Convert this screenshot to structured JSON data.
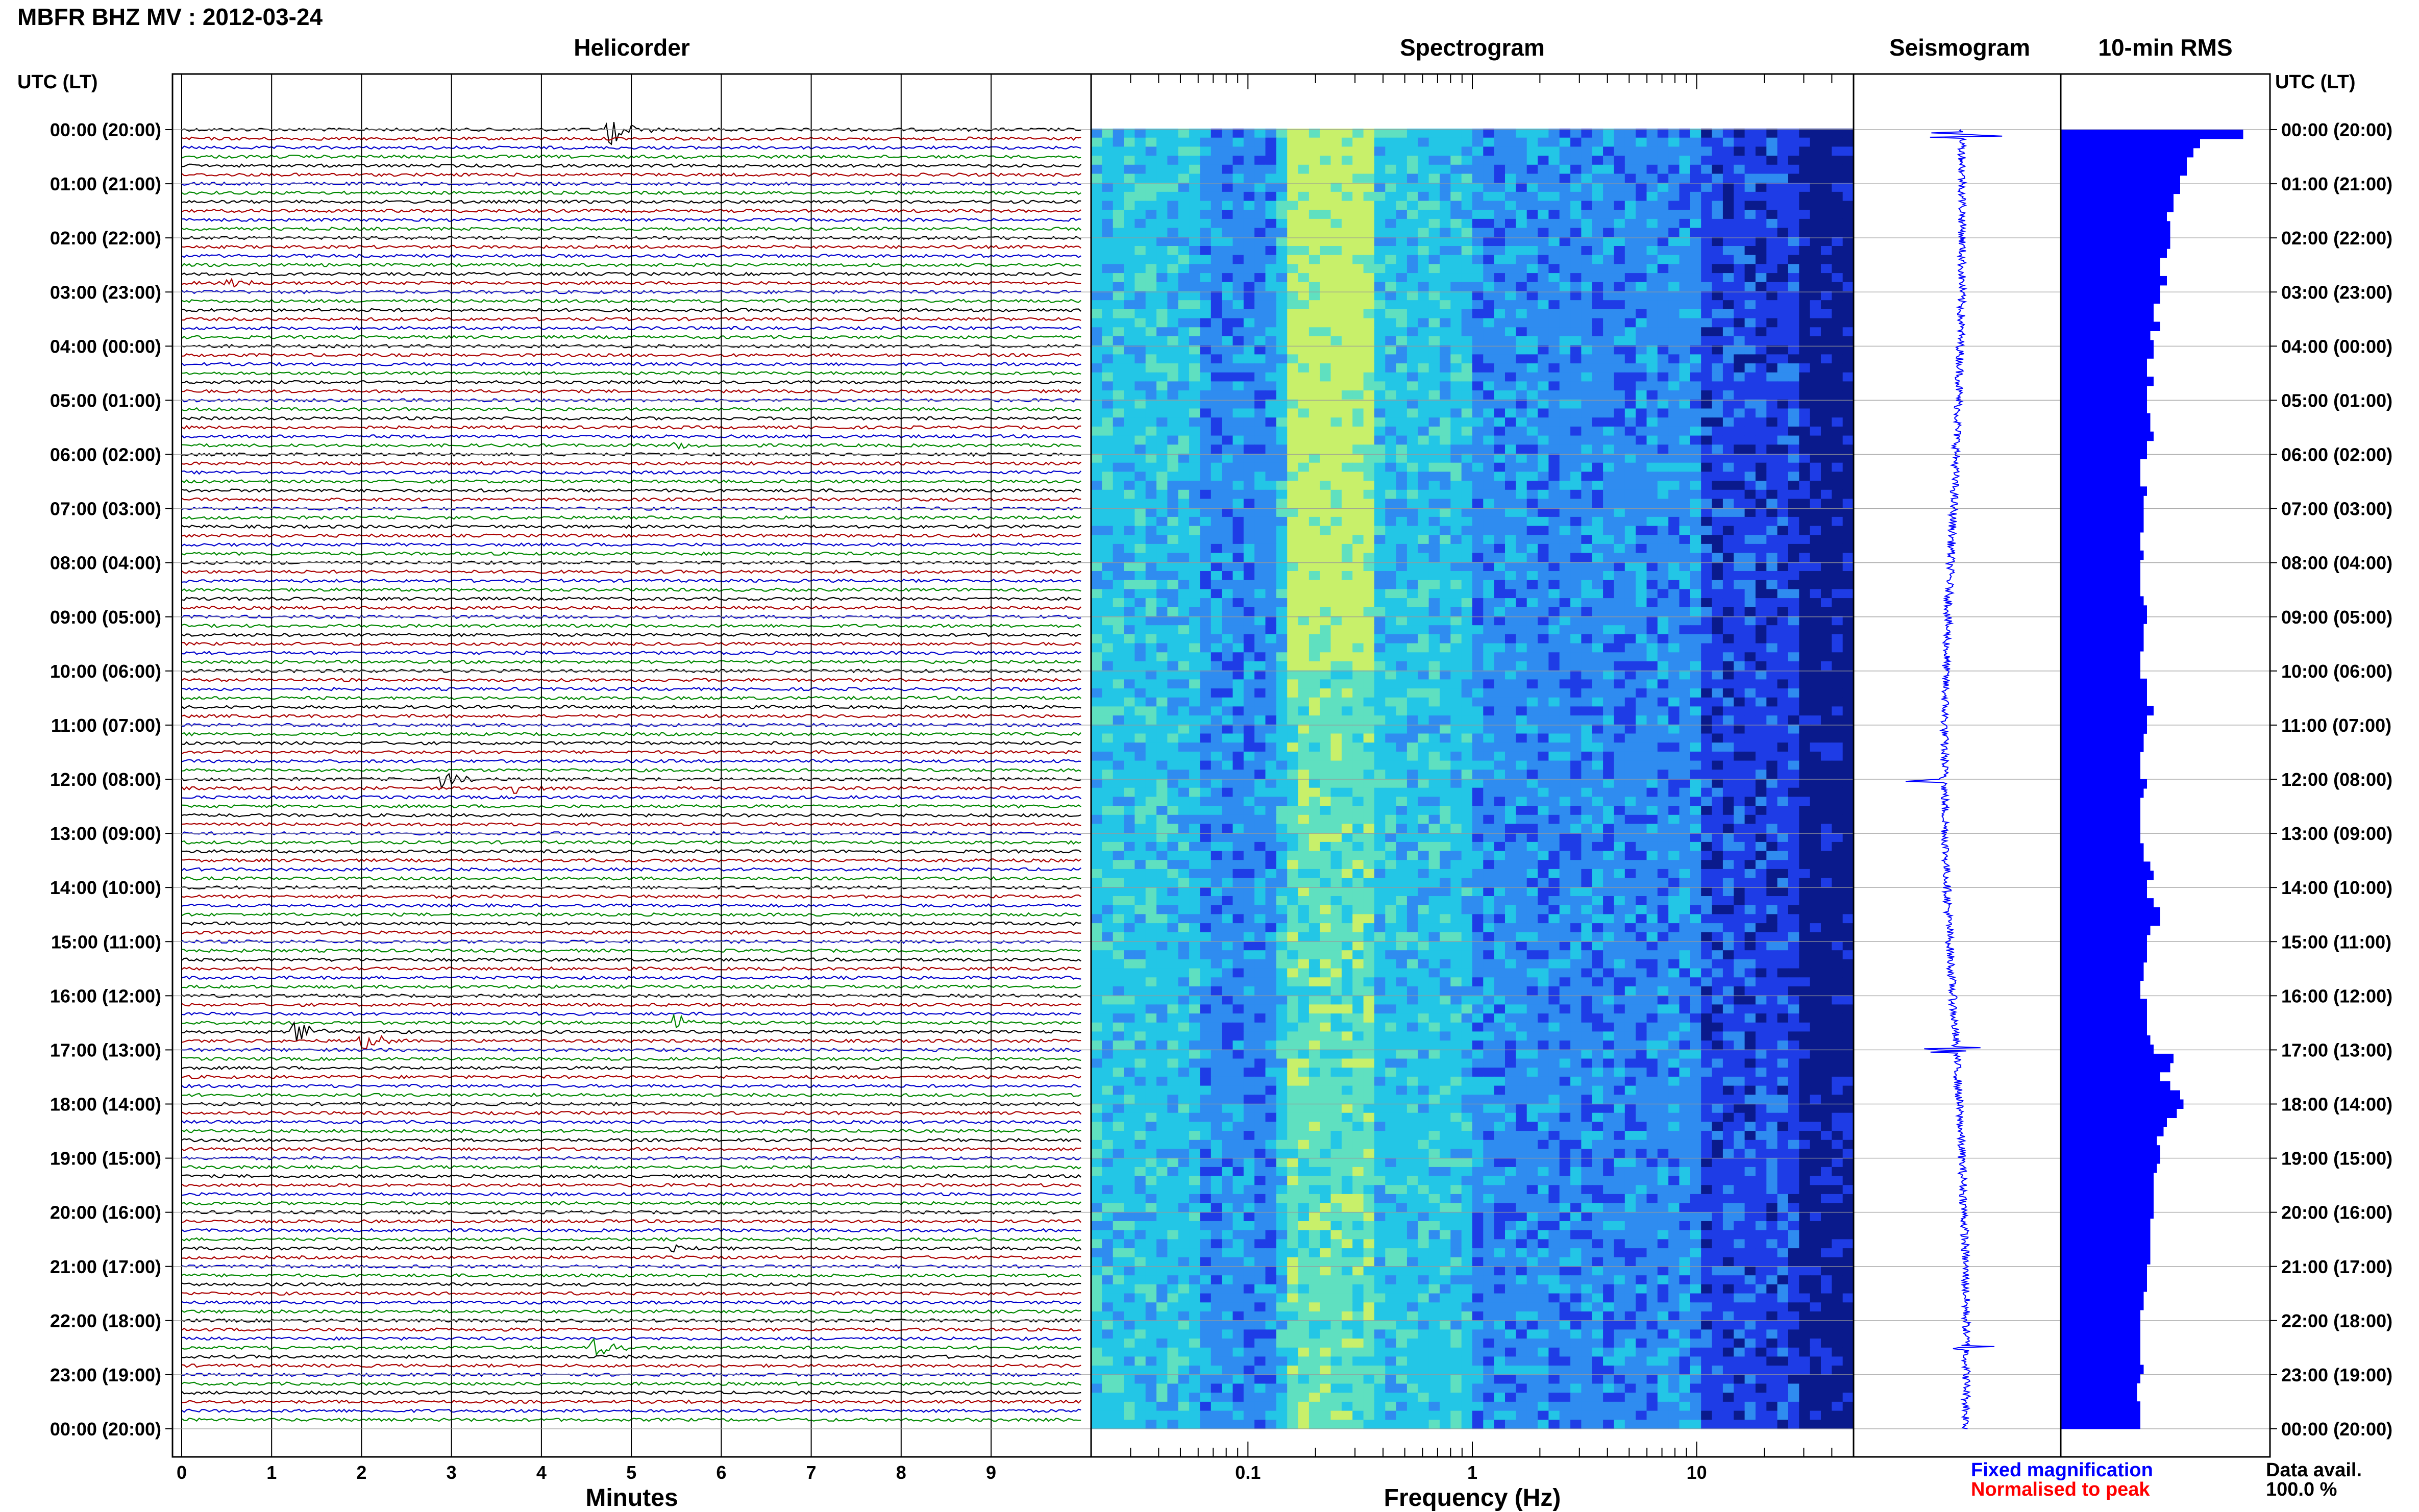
{
  "header": {
    "title": "MBFR BHZ MV : 2012-03-24"
  },
  "panels": {
    "helicorder": "Helicorder",
    "spectrogram": "Spectrogram",
    "seismogram": "Seismogram",
    "rms": "10-min RMS"
  },
  "axes": {
    "utc_label_left": "UTC (LT)",
    "utc_label_right": "UTC (LT)",
    "minutes_label": "Minutes",
    "frequency_label": "Frequency (Hz)"
  },
  "legend": {
    "fixed": "Fixed magnification",
    "normalised": "Normalised to peak",
    "fixed_color": "#0000ff",
    "normalised_color": "#ff0000"
  },
  "data_availability": {
    "label": "Data avail.",
    "value": "100.0 %"
  },
  "trace_colors": [
    "#000000",
    "#aa0000",
    "#0000cc",
    "#008800"
  ],
  "chart_data": [
    {
      "type": "line",
      "name": "helicorder",
      "xlabel": "Minutes",
      "x_ticks": [
        0,
        1,
        2,
        3,
        4,
        5,
        6,
        7,
        8,
        9
      ],
      "xlim": [
        0,
        10
      ],
      "rows_per_hour": 6,
      "hours": 24,
      "y_tick_labels": [
        "00:00 (20:00)",
        "01:00 (21:00)",
        "02:00 (22:00)",
        "03:00 (23:00)",
        "04:00 (00:00)",
        "05:00 (01:00)",
        "06:00 (02:00)",
        "07:00 (03:00)",
        "08:00 (04:00)",
        "09:00 (05:00)",
        "10:00 (06:00)",
        "11:00 (07:00)",
        "12:00 (08:00)",
        "13:00 (09:00)",
        "14:00 (10:00)",
        "15:00 (11:00)",
        "16:00 (12:00)",
        "17:00 (13:00)",
        "18:00 (14:00)",
        "19:00 (15:00)",
        "20:00 (16:00)",
        "21:00 (17:00)",
        "22:00 (18:00)",
        "23:00 (19:00)",
        "00:00 (20:00)"
      ],
      "events": [
        {
          "hour": 0.0,
          "minute": 4.75,
          "amp": 1.0
        },
        {
          "hour": 12.0,
          "minute": 2.9,
          "amp": 0.5
        },
        {
          "hour": 12.17,
          "minute": 3.7,
          "amp": 0.4
        },
        {
          "hour": 16.67,
          "minute": 1.25,
          "amp": 0.8
        },
        {
          "hour": 16.83,
          "minute": 2.0,
          "amp": 0.6
        },
        {
          "hour": 16.5,
          "minute": 5.5,
          "amp": 0.4
        },
        {
          "hour": 22.5,
          "minute": 4.6,
          "amp": 0.6
        },
        {
          "hour": 20.67,
          "minute": 5.45,
          "amp": 0.35
        },
        {
          "hour": 2.83,
          "minute": 0.5,
          "amp": 0.3
        },
        {
          "hour": 5.83,
          "minute": 5.5,
          "amp": 0.3
        }
      ]
    },
    {
      "type": "heatmap",
      "name": "spectrogram",
      "xlabel": "Frequency (Hz)",
      "x_scale": "log",
      "xlim": [
        0.02,
        50
      ],
      "x_ticks": [
        0.1,
        1,
        10
      ],
      "x_tick_labels": [
        "0.1",
        "1",
        "10"
      ],
      "peak_band_hz": [
        0.15,
        0.35
      ],
      "colormap": [
        "#0a1a8c",
        "#1e3ce6",
        "#2f8cf0",
        "#23c6e6",
        "#5fe0c0",
        "#c8f06a"
      ]
    },
    {
      "type": "line",
      "name": "seismogram",
      "note_events_hours": [
        0.1,
        12.0,
        17.0,
        22.5
      ]
    },
    {
      "type": "bar",
      "name": "rms",
      "ylabel": "10-min RMS",
      "values": [
        0.55,
        0.42,
        0.4,
        0.38,
        0.38,
        0.36,
        0.36,
        0.34,
        0.34,
        0.32,
        0.33,
        0.33,
        0.33,
        0.32,
        0.3,
        0.3,
        0.32,
        0.3,
        0.3,
        0.28,
        0.28,
        0.3,
        0.27,
        0.28,
        0.28,
        0.26,
        0.26,
        0.28,
        0.26,
        0.26,
        0.26,
        0.27,
        0.27,
        0.28,
        0.26,
        0.26,
        0.24,
        0.24,
        0.24,
        0.26,
        0.25,
        0.25,
        0.25,
        0.25,
        0.24,
        0.24,
        0.25,
        0.24,
        0.24,
        0.24,
        0.24,
        0.25,
        0.26,
        0.26,
        0.25,
        0.25,
        0.25,
        0.24,
        0.24,
        0.24,
        0.26,
        0.26,
        0.26,
        0.28,
        0.26,
        0.26,
        0.25,
        0.25,
        0.24,
        0.24,
        0.24,
        0.26,
        0.25,
        0.24,
        0.24,
        0.24,
        0.24,
        0.24,
        0.25,
        0.25,
        0.27,
        0.28,
        0.26,
        0.26,
        0.28,
        0.3,
        0.3,
        0.27,
        0.26,
        0.26,
        0.26,
        0.25,
        0.25,
        0.24,
        0.24,
        0.26,
        0.26,
        0.26,
        0.26,
        0.27,
        0.28,
        0.34,
        0.33,
        0.3,
        0.33,
        0.36,
        0.37,
        0.35,
        0.32,
        0.31,
        0.29,
        0.3,
        0.3,
        0.29,
        0.28,
        0.28,
        0.28,
        0.28,
        0.28,
        0.27,
        0.27,
        0.27,
        0.27,
        0.27,
        0.26,
        0.26,
        0.26,
        0.25,
        0.25,
        0.24,
        0.24,
        0.24,
        0.24,
        0.24,
        0.24,
        0.25,
        0.24,
        0.23,
        0.23,
        0.24,
        0.24,
        0.24
      ]
    }
  ]
}
